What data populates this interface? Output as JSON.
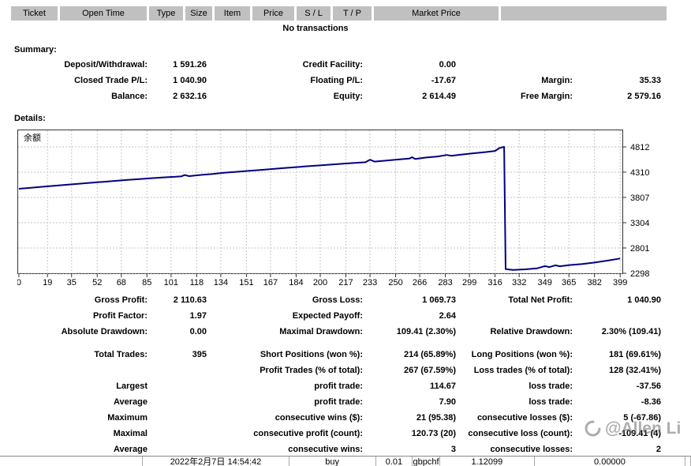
{
  "open_trades": {
    "columns": [
      "Ticket",
      "Open Time",
      "Type",
      "Size",
      "Item",
      "Price",
      "S / L",
      "T / P",
      "Market Price",
      ""
    ],
    "empty_message": "No transactions"
  },
  "summary": {
    "title": "Summary:",
    "rows": [
      [
        "Deposit/Withdrawal:",
        "1 591.26",
        "Credit Facility:",
        "0.00",
        "",
        ""
      ],
      [
        "Closed Trade P/L:",
        "1 040.90",
        "Floating P/L:",
        "-17.67",
        "Margin:",
        "35.33"
      ],
      [
        "Balance:",
        "2 632.16",
        "Equity:",
        "2 614.49",
        "Free Margin:",
        "2 579.16"
      ]
    ]
  },
  "details": {
    "title": "Details:",
    "rows": [
      [
        "Gross Profit:",
        "2 110.63",
        "Gross Loss:",
        "1 069.73",
        "Total Net Profit:",
        "1 040.90"
      ],
      [
        "Profit Factor:",
        "1.97",
        "Expected Payoff:",
        "2.64",
        "",
        ""
      ],
      [
        "Absolute Drawdown:",
        "0.00",
        "Maximal Drawdown:",
        "109.41 (2.30%)",
        "Relative Drawdown:",
        "2.30% (109.41)"
      ],
      [
        "Total Trades:",
        "395",
        "Short Positions (won %):",
        "214 (65.89%)",
        "Long Positions (won %):",
        "181 (69.61%)"
      ],
      [
        "",
        "",
        "Profit Trades (% of total):",
        "267 (67.59%)",
        "Loss trades (% of total):",
        "128 (32.41%)"
      ],
      [
        "Largest",
        "",
        "profit trade:",
        "114.67",
        "loss trade:",
        "-37.56"
      ],
      [
        "Average",
        "",
        "profit trade:",
        "7.90",
        "loss trade:",
        "-8.36"
      ],
      [
        "Maximum",
        "",
        "consecutive wins ($):",
        "21 (95.38)",
        "consecutive losses ($):",
        "5 (-67.86)"
      ],
      [
        "Maximal",
        "",
        "consecutive profit (count):",
        "120.73 (20)",
        "consecutive loss (count):",
        "-109.41 (4)"
      ],
      [
        "Average",
        "",
        "consecutive wins:",
        "3",
        "consecutive losses:",
        "2"
      ]
    ]
  },
  "chart_data": {
    "type": "line",
    "title": "",
    "legend": [
      "余额"
    ],
    "legend_position": "top-left",
    "grid": true,
    "line_color": "#000080",
    "grid_color": "#c6c6c6",
    "x_ticks": [
      0,
      19,
      35,
      52,
      68,
      85,
      101,
      118,
      134,
      151,
      167,
      184,
      200,
      217,
      233,
      250,
      266,
      283,
      299,
      316,
      332,
      349,
      365,
      382,
      399
    ],
    "y_ticks": [
      4812,
      4310,
      3807,
      3304,
      2801,
      2298
    ],
    "xlim": [
      -1,
      401
    ],
    "ylim": [
      2282,
      5158
    ],
    "series": [
      {
        "name": "余额",
        "points": [
          [
            0,
            3980
          ],
          [
            8,
            4000
          ],
          [
            16,
            4020
          ],
          [
            24,
            4040
          ],
          [
            32,
            4060
          ],
          [
            40,
            4080
          ],
          [
            48,
            4098
          ],
          [
            56,
            4118
          ],
          [
            64,
            4136
          ],
          [
            72,
            4156
          ],
          [
            80,
            4172
          ],
          [
            88,
            4190
          ],
          [
            96,
            4205
          ],
          [
            104,
            4218
          ],
          [
            108,
            4228
          ],
          [
            110,
            4252
          ],
          [
            113,
            4230
          ],
          [
            120,
            4252
          ],
          [
            128,
            4272
          ],
          [
            136,
            4296
          ],
          [
            144,
            4316
          ],
          [
            152,
            4334
          ],
          [
            160,
            4352
          ],
          [
            168,
            4372
          ],
          [
            176,
            4392
          ],
          [
            184,
            4410
          ],
          [
            192,
            4428
          ],
          [
            200,
            4444
          ],
          [
            208,
            4462
          ],
          [
            216,
            4480
          ],
          [
            224,
            4496
          ],
          [
            230,
            4508
          ],
          [
            233,
            4558
          ],
          [
            236,
            4520
          ],
          [
            244,
            4542
          ],
          [
            252,
            4562
          ],
          [
            259,
            4580
          ],
          [
            261,
            4606
          ],
          [
            263,
            4572
          ],
          [
            270,
            4600
          ],
          [
            278,
            4622
          ],
          [
            284,
            4652
          ],
          [
            287,
            4634
          ],
          [
            294,
            4662
          ],
          [
            302,
            4686
          ],
          [
            310,
            4710
          ],
          [
            316,
            4732
          ],
          [
            319,
            4790
          ],
          [
            321,
            4806
          ],
          [
            322,
            4812
          ],
          [
            323,
            2380
          ],
          [
            328,
            2366
          ],
          [
            336,
            2376
          ],
          [
            344,
            2396
          ],
          [
            349,
            2440
          ],
          [
            352,
            2420
          ],
          [
            356,
            2456
          ],
          [
            359,
            2438
          ],
          [
            366,
            2462
          ],
          [
            374,
            2482
          ],
          [
            382,
            2512
          ],
          [
            390,
            2548
          ],
          [
            399,
            2592
          ]
        ]
      }
    ]
  },
  "watermark": {
    "icon": "swirl-icon",
    "text": "@Allen Li"
  },
  "clipped_row": {
    "cells": [
      "",
      "2022年2月7日 14:54:42",
      "buy",
      "0.01",
      "gbpchf",
      "1.12099",
      "0.00000",
      ""
    ]
  }
}
